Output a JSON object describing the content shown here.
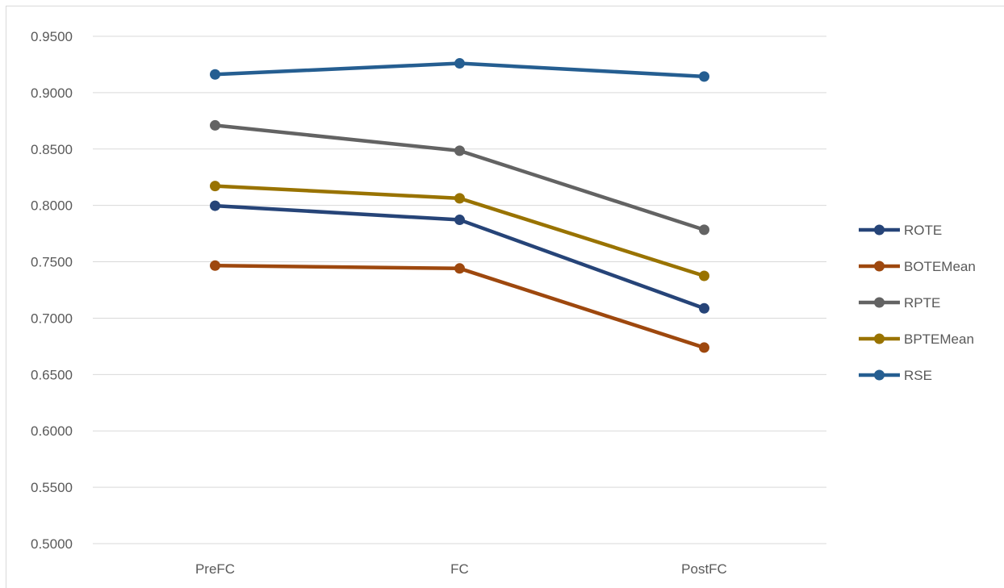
{
  "chart_data": {
    "type": "line",
    "title": "",
    "xlabel": "",
    "ylabel": "",
    "categories": [
      "PreFC",
      "FC",
      "PostFC"
    ],
    "ylim": [
      0.5,
      0.95
    ],
    "yticks": [
      "0.5000",
      "0.5500",
      "0.6000",
      "0.6500",
      "0.7000",
      "0.7500",
      "0.8000",
      "0.8500",
      "0.9000",
      "0.9500"
    ],
    "grid": true,
    "legend_position": "right",
    "series": [
      {
        "name": "ROTE",
        "color": "#264478",
        "values": [
          0.7997,
          0.7872,
          0.7087
        ]
      },
      {
        "name": "BOTEMean",
        "color": "#9E480E",
        "values": [
          0.7466,
          0.7441,
          0.6739
        ]
      },
      {
        "name": "RPTE",
        "color": "#636363",
        "values": [
          0.871,
          0.8485,
          0.7784
        ]
      },
      {
        "name": "BPTEMean",
        "color": "#997300",
        "values": [
          0.8172,
          0.8063,
          0.7375
        ]
      },
      {
        "name": "RSE",
        "color": "#255E91",
        "values": [
          0.9162,
          0.926,
          0.9143
        ]
      }
    ]
  }
}
